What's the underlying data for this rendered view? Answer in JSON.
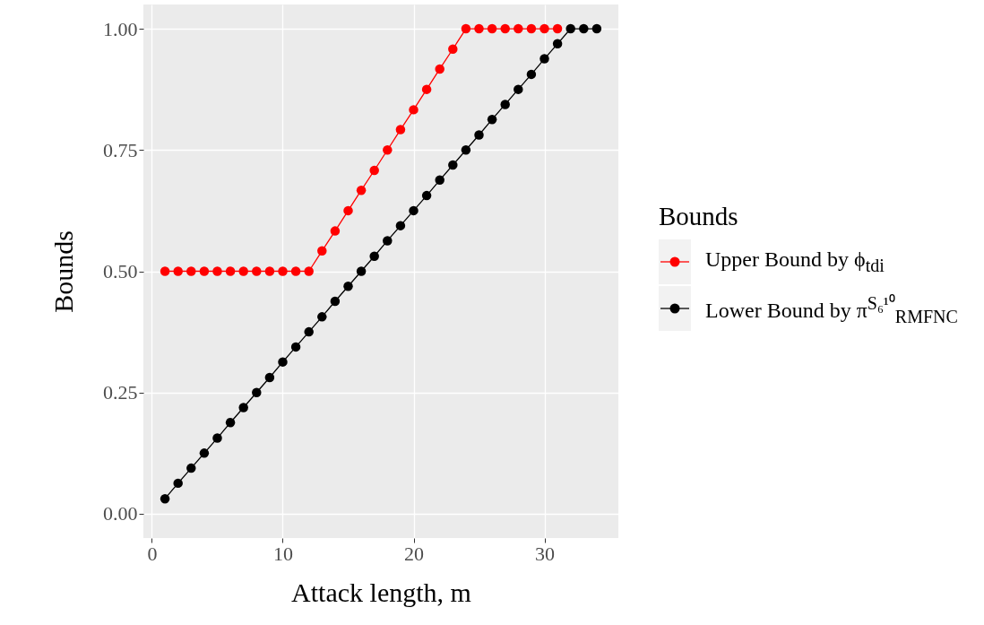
{
  "chart_data": {
    "type": "line",
    "xlabel": "Attack length, m",
    "ylabel": "Bounds",
    "legend_title": "Bounds",
    "legend": "right",
    "grid": true,
    "marker": "circle",
    "line_style": "solid",
    "xlim": [
      -0.65,
      35.65
    ],
    "xticks": [
      0,
      10,
      20,
      30
    ],
    "ylim": [
      -0.05,
      1.05
    ],
    "yticks": [
      {
        "value": 0,
        "label": "0.00"
      },
      {
        "value": 0.25,
        "label": "0.25"
      },
      {
        "value": 0.5,
        "label": "0.50"
      },
      {
        "value": 0.75,
        "label": "0.75"
      },
      {
        "value": 1,
        "label": "1.00"
      }
    ],
    "x": [
      1,
      2,
      3,
      4,
      5,
      6,
      7,
      8,
      9,
      10,
      11,
      12,
      13,
      14,
      15,
      16,
      17,
      18,
      19,
      20,
      21,
      22,
      23,
      24,
      25,
      26,
      27,
      28,
      29,
      30,
      31,
      32,
      33,
      34
    ],
    "series": [
      {
        "name": "Upper Bound by ϕ$_{tdi}$",
        "color": "#ff0000",
        "values": [
          0.5,
          0.5,
          0.5,
          0.5,
          0.5,
          0.5,
          0.5,
          0.5,
          0.5,
          0.5,
          0.5,
          0.5,
          0.542,
          0.583,
          0.625,
          0.667,
          0.708,
          0.75,
          0.792,
          0.833,
          0.875,
          0.917,
          0.958,
          1,
          1,
          1,
          1,
          1,
          1,
          1,
          1,
          null,
          null,
          null
        ]
      },
      {
        "name": "Lower Bound by π$^{S₆¹⁰}$$_{RMFNC}$",
        "color": "#000000",
        "values": [
          0.031,
          0.063,
          0.094,
          0.125,
          0.156,
          0.188,
          0.219,
          0.25,
          0.281,
          0.313,
          0.344,
          0.375,
          0.406,
          0.438,
          0.469,
          0.5,
          0.531,
          0.563,
          0.594,
          0.625,
          0.656,
          0.688,
          0.719,
          0.75,
          0.781,
          0.813,
          0.844,
          0.875,
          0.906,
          0.938,
          0.969,
          1,
          1,
          1
        ]
      }
    ]
  }
}
